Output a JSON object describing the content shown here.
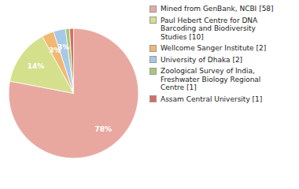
{
  "chart_data": {
    "type": "pie",
    "categories": [
      "Mined from GenBank, NCBI [58]",
      "Paul Hebert Centre for DNA\nBarcoding and Biodiversity\nStudies [10]",
      "Wellcome Sanger Institute [2]",
      "University of Dhaka [2]",
      "Zoological Survey of India,\nFreshwater Biology Regional\nCentre [1]",
      "Assam Central University [1]"
    ],
    "values": [
      78,
      14,
      3,
      3,
      1,
      1
    ],
    "value_labels": [
      "78%",
      "14%",
      "3%",
      "3%",
      null,
      null
    ],
    "colors": [
      "#e8a8a0",
      "#d4e08c",
      "#f0b870",
      "#a8c8e8",
      "#a8c878",
      "#d47060"
    ],
    "data_labels": true,
    "legend": "right"
  }
}
